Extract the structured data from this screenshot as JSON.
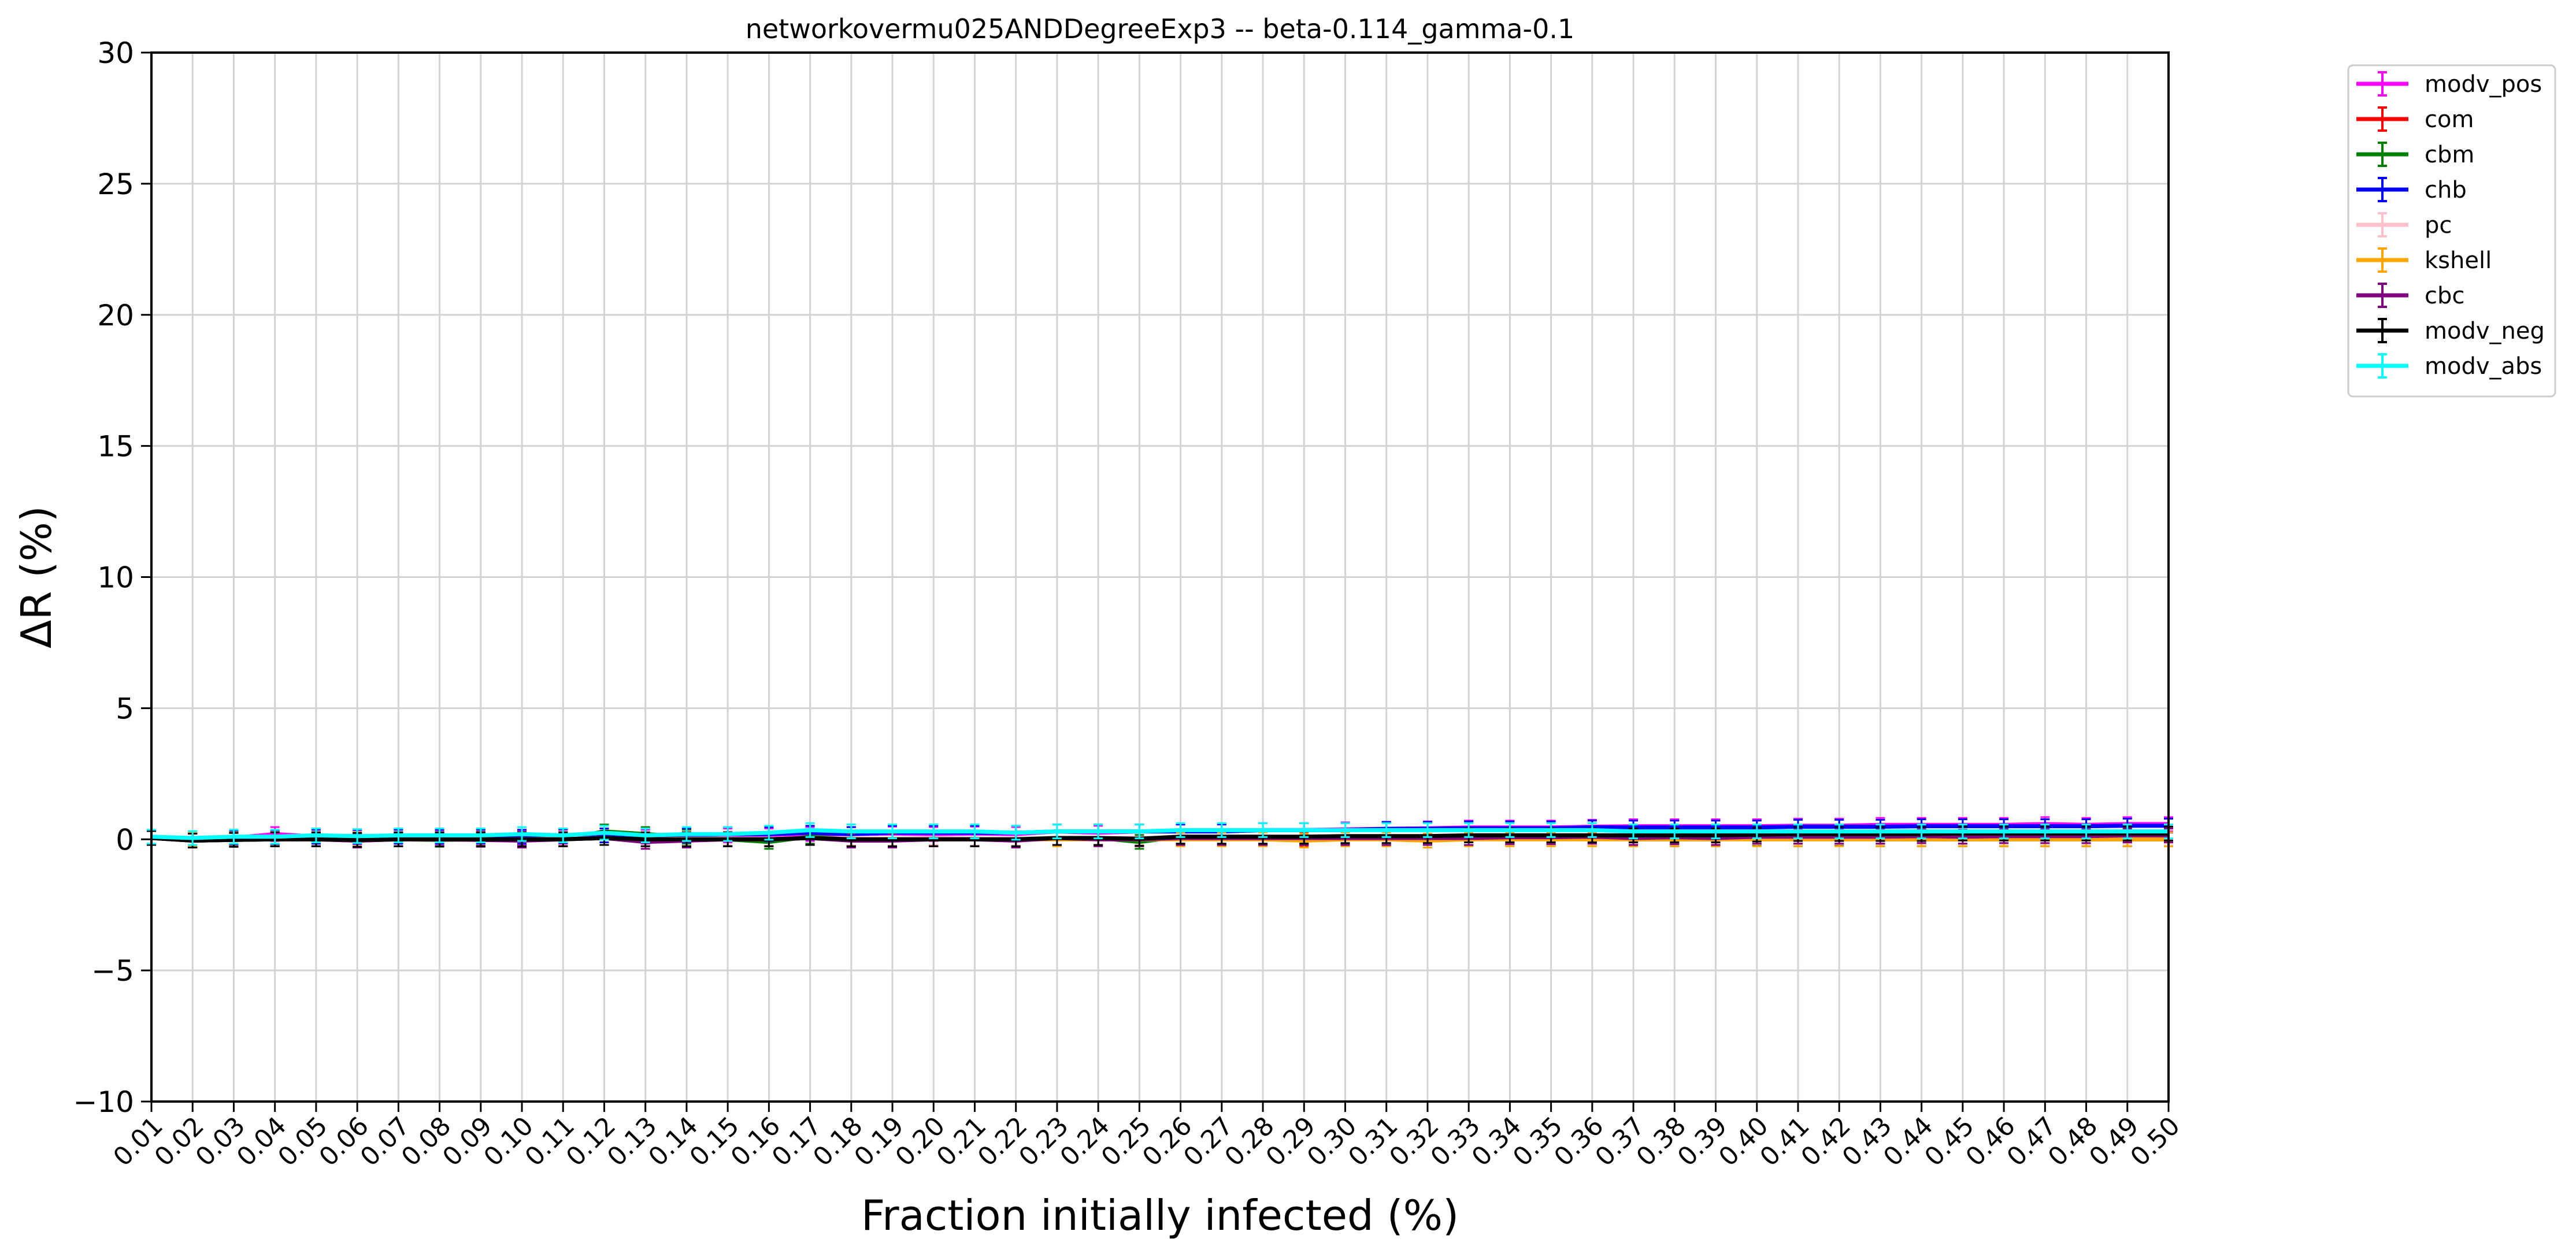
{
  "chart_data": {
    "type": "line",
    "title": "networkovermu025ANDDegreeExp3 -- beta-0.114_gamma-0.1",
    "xlabel": "Fraction initially infected (%)",
    "ylabel": "ΔR (%)",
    "ylim": [
      -10,
      30
    ],
    "yticks": [
      -10,
      -5,
      0,
      5,
      10,
      15,
      20,
      25,
      30
    ],
    "ytick_labels": [
      "−10",
      "−5",
      "0",
      "5",
      "10",
      "15",
      "20",
      "25",
      "30"
    ],
    "grid": true,
    "legend_position": "outside-top-right",
    "categories": [
      "0.01",
      "0.02",
      "0.03",
      "0.04",
      "0.05",
      "0.06",
      "0.07",
      "0.08",
      "0.09",
      "0.10",
      "0.11",
      "0.12",
      "0.13",
      "0.14",
      "0.15",
      "0.16",
      "0.17",
      "0.18",
      "0.19",
      "0.20",
      "0.21",
      "0.22",
      "0.23",
      "0.24",
      "0.25",
      "0.26",
      "0.27",
      "0.28",
      "0.29",
      "0.30",
      "0.31",
      "0.32",
      "0.33",
      "0.34",
      "0.35",
      "0.36",
      "0.37",
      "0.38",
      "0.39",
      "0.40",
      "0.41",
      "0.42",
      "0.43",
      "0.44",
      "0.45",
      "0.46",
      "0.47",
      "0.48",
      "0.49",
      "0.50"
    ],
    "series": [
      {
        "name": "modv_pos",
        "color": "#ff00ff",
        "values": [
          0.05,
          0.0,
          0.05,
          0.2,
          0.1,
          0.08,
          0.1,
          0.08,
          0.1,
          0.05,
          0.1,
          0.25,
          0.1,
          0.12,
          0.15,
          0.15,
          0.2,
          0.2,
          0.22,
          0.2,
          0.22,
          0.2,
          0.3,
          0.25,
          0.3,
          0.3,
          0.32,
          0.35,
          0.35,
          0.38,
          0.4,
          0.42,
          0.45,
          0.45,
          0.45,
          0.48,
          0.5,
          0.5,
          0.5,
          0.5,
          0.52,
          0.52,
          0.55,
          0.55,
          0.55,
          0.55,
          0.58,
          0.55,
          0.58,
          0.58
        ]
      },
      {
        "name": "com",
        "color": "#ff0000",
        "values": [
          0.05,
          -0.02,
          0.0,
          0.02,
          0.0,
          -0.02,
          0.0,
          0.0,
          0.02,
          0.0,
          0.02,
          0.05,
          0.0,
          0.0,
          0.02,
          0.0,
          0.05,
          0.02,
          0.0,
          0.02,
          0.02,
          0.0,
          0.05,
          0.05,
          0.0,
          0.05,
          0.05,
          0.05,
          0.02,
          0.05,
          0.05,
          0.05,
          0.05,
          0.08,
          0.08,
          0.05,
          0.05,
          0.08,
          0.08,
          0.08,
          0.1,
          0.08,
          0.1,
          0.1,
          0.1,
          0.1,
          0.1,
          0.1,
          0.12,
          0.12
        ]
      },
      {
        "name": "cbm",
        "color": "#008000",
        "values": [
          0.05,
          -0.05,
          -0.02,
          0.0,
          0.0,
          -0.05,
          0.0,
          -0.02,
          0.0,
          0.0,
          0.0,
          0.3,
          0.2,
          0.1,
          0.0,
          -0.1,
          0.1,
          0.0,
          0.0,
          0.05,
          0.0,
          0.0,
          0.05,
          0.05,
          -0.1,
          0.1,
          0.05,
          0.05,
          0.1,
          0.1,
          0.05,
          0.05,
          0.05,
          0.05,
          0.05,
          0.1,
          0.0,
          0.0,
          0.0,
          0.05,
          0.0,
          0.05,
          0.0,
          0.0,
          0.0,
          0.0,
          0.0,
          0.0,
          0.0,
          0.0
        ]
      },
      {
        "name": "chb",
        "color": "#0000ff",
        "values": [
          0.05,
          0.05,
          0.05,
          0.05,
          0.1,
          0.1,
          0.1,
          0.1,
          0.1,
          0.1,
          0.12,
          0.15,
          0.15,
          0.15,
          0.2,
          0.2,
          0.25,
          0.2,
          0.25,
          0.25,
          0.25,
          0.25,
          0.3,
          0.3,
          0.3,
          0.3,
          0.3,
          0.35,
          0.35,
          0.35,
          0.4,
          0.4,
          0.42,
          0.42,
          0.42,
          0.45,
          0.45,
          0.45,
          0.45,
          0.45,
          0.48,
          0.48,
          0.48,
          0.5,
          0.5,
          0.5,
          0.5,
          0.5,
          0.52,
          0.52
        ]
      },
      {
        "name": "pc",
        "color": "#ffc0cb",
        "values": [
          0.05,
          0.0,
          0.0,
          0.02,
          0.0,
          0.0,
          0.0,
          0.0,
          0.0,
          0.0,
          0.02,
          0.05,
          0.0,
          0.02,
          0.02,
          0.02,
          0.05,
          0.02,
          0.02,
          0.05,
          0.02,
          0.02,
          0.05,
          0.05,
          0.05,
          0.05,
          0.05,
          0.05,
          0.05,
          0.05,
          0.05,
          0.05,
          0.05,
          0.05,
          0.05,
          0.05,
          0.08,
          0.08,
          0.08,
          0.08,
          0.08,
          0.08,
          0.08,
          0.1,
          0.1,
          0.1,
          0.1,
          0.1,
          0.1,
          0.1
        ]
      },
      {
        "name": "kshell",
        "color": "#ffa500",
        "values": [
          0.05,
          0.0,
          0.0,
          0.0,
          0.0,
          0.0,
          0.0,
          0.0,
          0.0,
          0.0,
          0.0,
          0.05,
          0.0,
          0.0,
          0.0,
          0.0,
          0.05,
          0.0,
          0.0,
          0.0,
          0.0,
          0.0,
          0.0,
          0.0,
          0.0,
          0.0,
          0.0,
          0.0,
          -0.05,
          0.0,
          0.0,
          -0.05,
          0.0,
          0.0,
          0.0,
          0.0,
          0.0,
          0.0,
          0.0,
          0.0,
          0.0,
          0.0,
          0.0,
          0.0,
          0.0,
          0.0,
          0.0,
          0.0,
          0.0,
          0.0
        ]
      },
      {
        "name": "cbc",
        "color": "#800080",
        "values": [
          0.05,
          -0.05,
          -0.02,
          0.0,
          0.0,
          -0.05,
          0.0,
          0.0,
          -0.02,
          -0.05,
          0.0,
          0.05,
          -0.1,
          -0.05,
          0.0,
          0.0,
          0.05,
          -0.05,
          -0.05,
          0.0,
          0.0,
          -0.05,
          0.05,
          0.0,
          0.0,
          0.05,
          0.05,
          0.05,
          0.05,
          0.05,
          0.05,
          0.05,
          0.05,
          0.08,
          0.08,
          0.1,
          0.05,
          0.08,
          0.05,
          0.1,
          0.1,
          0.1,
          0.1,
          0.12,
          0.1,
          0.12,
          0.12,
          0.12,
          0.15,
          0.15
        ]
      },
      {
        "name": "modv_neg",
        "color": "#000000",
        "values": [
          0.05,
          -0.05,
          -0.02,
          0.0,
          0.0,
          -0.02,
          0.0,
          0.0,
          0.0,
          0.0,
          0.0,
          0.05,
          0.0,
          0.0,
          0.0,
          0.0,
          0.05,
          0.0,
          0.0,
          0.0,
          0.0,
          0.0,
          0.05,
          0.05,
          0.02,
          0.1,
          0.1,
          0.1,
          0.1,
          0.12,
          0.12,
          0.12,
          0.15,
          0.15,
          0.15,
          0.15,
          0.15,
          0.15,
          0.15,
          0.18,
          0.2,
          0.2,
          0.2,
          0.2,
          0.22,
          0.22,
          0.22,
          0.22,
          0.22,
          0.22
        ]
      },
      {
        "name": "modv_abs",
        "color": "#00ffff",
        "values": [
          0.1,
          0.05,
          0.1,
          0.1,
          0.15,
          0.12,
          0.15,
          0.15,
          0.15,
          0.2,
          0.15,
          0.25,
          0.15,
          0.2,
          0.2,
          0.25,
          0.35,
          0.3,
          0.3,
          0.3,
          0.3,
          0.25,
          0.3,
          0.3,
          0.3,
          0.35,
          0.35,
          0.35,
          0.35,
          0.35,
          0.35,
          0.35,
          0.35,
          0.35,
          0.35,
          0.35,
          0.3,
          0.3,
          0.3,
          0.3,
          0.3,
          0.3,
          0.3,
          0.3,
          0.3,
          0.3,
          0.3,
          0.3,
          0.3,
          0.3
        ]
      }
    ]
  }
}
